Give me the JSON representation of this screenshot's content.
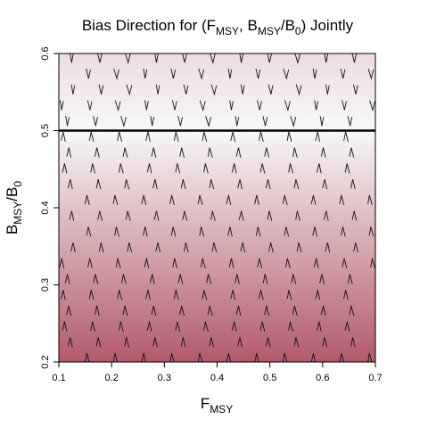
{
  "chart_data": {
    "type": "quiver",
    "title": {
      "prefix": "Bias Direction for (F",
      "sub1": "MSY",
      "mid": ", B",
      "sub2": "MSY",
      "mid2": "/B",
      "sub3": "0",
      "suffix": ") Jointly"
    },
    "xlabel": {
      "main": "F",
      "sub": "MSY"
    },
    "ylabel": {
      "main": "B",
      "sub1": "MSY",
      "mid": "/B",
      "sub2": "0"
    },
    "xlim": [
      0.1,
      0.7
    ],
    "ylim": [
      0.2,
      0.6
    ],
    "x_ticks": [
      "0.1",
      "0.2",
      "0.3",
      "0.4",
      "0.5",
      "0.6",
      "0.7"
    ],
    "y_ticks": [
      "0.2",
      "0.3",
      "0.4",
      "0.5",
      "0.6"
    ],
    "reference_line_y": 0.5,
    "color_scale": {
      "low": "#b35a6a",
      "mid": "#f8f8f8",
      "description_values": [
        0.2,
        0.5,
        0.6
      ]
    },
    "arrow_field": {
      "x_start": 0.1,
      "x_step": 0.0536,
      "y_start": 0.205,
      "y_step": 0.0205,
      "rows": 20,
      "cols": 12,
      "above_reference": "down",
      "below_reference": "up"
    }
  }
}
